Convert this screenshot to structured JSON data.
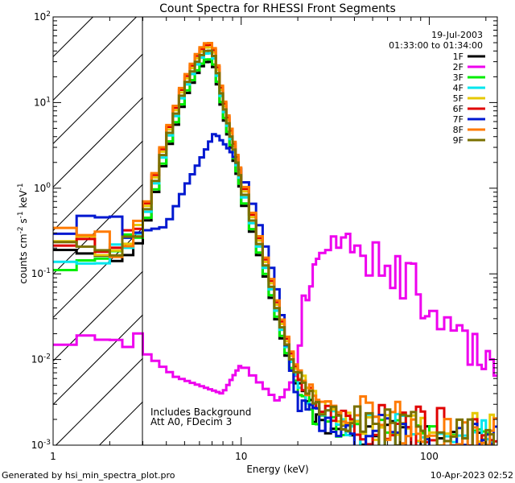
{
  "chart_data": {
    "type": "line",
    "title": "Count Spectra for RHESSI Front Segments",
    "date": "19-Jul-2003",
    "time_range": "01:33:00 to 01:34:00",
    "xlabel": "Energy (keV)",
    "ylabel": {
      "base": "counts cm",
      "exp1": "-2",
      "mid": " s",
      "exp2": "-1",
      "tail": " keV",
      "exp3": "-1"
    },
    "x_scale": "log",
    "y_scale": "log",
    "xlim": [
      1,
      230
    ],
    "ylim": [
      0.001,
      100
    ],
    "x_ticks": [
      {
        "value": 1,
        "label": "1"
      },
      {
        "value": 10,
        "label": "10"
      },
      {
        "value": 100,
        "label": "100"
      }
    ],
    "y_ticks": [
      {
        "value": 0.001,
        "base": "10",
        "exp": "-3"
      },
      {
        "value": 0.01,
        "base": "10",
        "exp": "-2"
      },
      {
        "value": 0.1,
        "base": "10",
        "exp": "-1"
      },
      {
        "value": 1,
        "base": "10",
        "exp": "0"
      },
      {
        "value": 10,
        "base": "10",
        "exp": "1"
      },
      {
        "value": 100,
        "base": "10",
        "exp": "2"
      }
    ],
    "shaded_region_keV": [
      1,
      3
    ],
    "annotation_lines": [
      "Includes Background",
      "Att A0, FDecim 3"
    ],
    "footer_left": "Generated by hsi_min_spectra_plot.pro",
    "footer_right": "10-Apr-2023 02:52",
    "series": [
      {
        "name": "1F",
        "color": "#000000"
      },
      {
        "name": "2F",
        "color": "#ee00ee"
      },
      {
        "name": "3F",
        "color": "#00ee00"
      },
      {
        "name": "4F",
        "color": "#00e6ee"
      },
      {
        "name": "5F",
        "color": "#e6c800"
      },
      {
        "name": "6F",
        "color": "#e00000"
      },
      {
        "name": "7F",
        "color": "#0018d0"
      },
      {
        "name": "8F",
        "color": "#ff7a00"
      },
      {
        "name": "9F",
        "color": "#7a7000"
      }
    ]
  }
}
